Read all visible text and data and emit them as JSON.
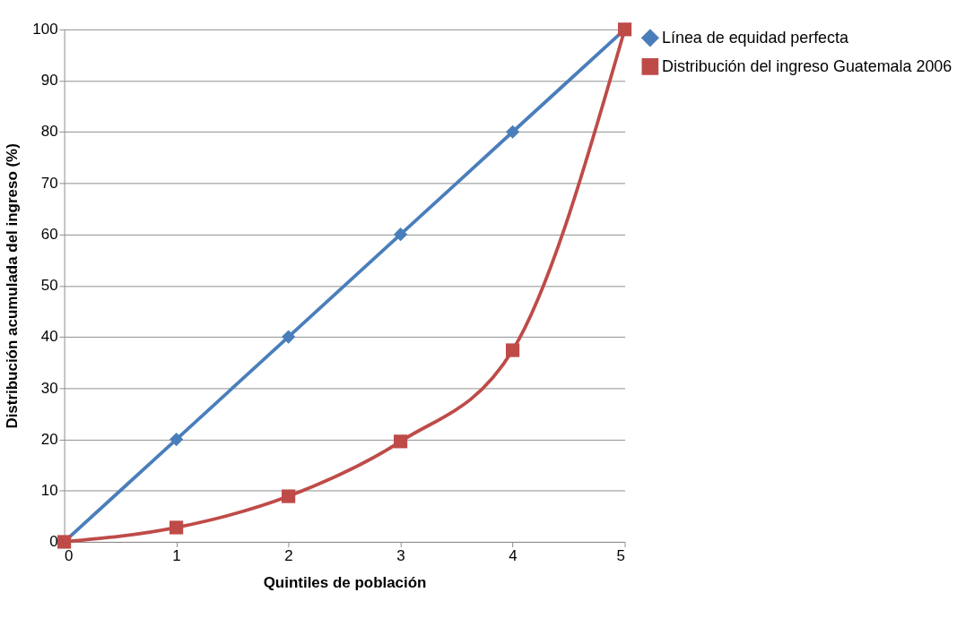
{
  "chart_data": {
    "type": "line",
    "xlabel": "Quintiles de población",
    "ylabel": "Distribución acumulada del ingreso (%)",
    "x": [
      0,
      1,
      2,
      3,
      4,
      5
    ],
    "series": [
      {
        "name": "Línea de equidad perfecta",
        "color": "#4a7ebb",
        "marker": "diamond",
        "values": [
          0,
          20,
          40,
          60,
          80,
          100
        ]
      },
      {
        "name": "Distribución del ingreso Guatemala 2006",
        "color": "#be4b48",
        "marker": "square",
        "values": [
          0,
          2.8,
          8.9,
          19.6,
          37.4,
          100
        ]
      }
    ],
    "xlim": [
      0,
      5
    ],
    "xticks": [
      0,
      1,
      2,
      3,
      4,
      5
    ],
    "ylim": [
      0,
      100
    ],
    "yticks": [
      0,
      10,
      20,
      30,
      40,
      50,
      60,
      70,
      80,
      90,
      100
    ],
    "grid": "y",
    "legend": "right"
  }
}
